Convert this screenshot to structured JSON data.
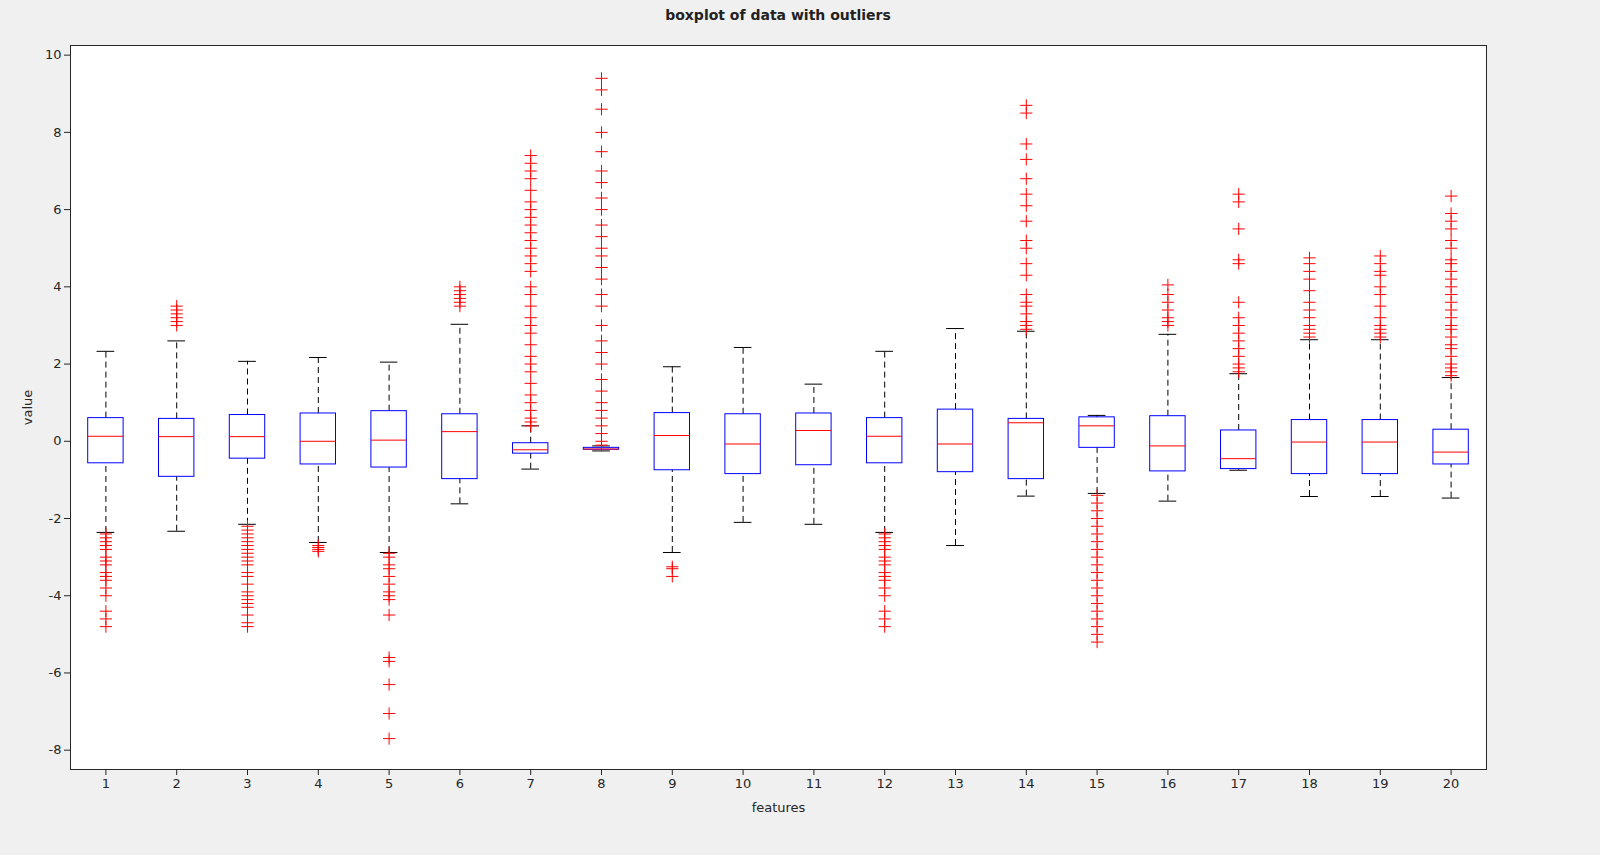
{
  "chart_data": {
    "type": "box",
    "title": "boxplot of data with outliers",
    "x_label": "features",
    "y_label": "value",
    "x": [
      1,
      2,
      3,
      4,
      5,
      6,
      7,
      8,
      9,
      10,
      11,
      12,
      13,
      14,
      15,
      16,
      17,
      18,
      19,
      20
    ],
    "xlim": [
      0.5,
      20.5
    ],
    "xticks": [
      1,
      2,
      3,
      4,
      5,
      6,
      7,
      8,
      9,
      10,
      11,
      12,
      13,
      14,
      15,
      16,
      17,
      18,
      19,
      20
    ],
    "ylim": [
      -8.5,
      10.25
    ],
    "yticks": [
      -8,
      -6,
      -4,
      -2,
      0,
      2,
      4,
      6,
      8,
      10
    ],
    "color": "#0000ff",
    "whisker_low": [
      -2.36,
      -2.33,
      -2.15,
      -2.62,
      -2.88,
      -1.62,
      -0.72,
      -0.25,
      -2.88,
      -2.1,
      -2.15,
      -2.36,
      -2.7,
      -1.42,
      -1.35,
      -1.55,
      -0.75,
      -1.43,
      -1.43,
      -1.47
    ],
    "q1": [
      -0.57,
      -0.92,
      -0.45,
      -0.6,
      -0.68,
      -0.98,
      -0.32,
      -0.22,
      -0.75,
      -0.85,
      -0.62,
      -0.57,
      -0.8,
      -0.98,
      -0.17,
      -0.78,
      -0.72,
      -0.85,
      -0.85,
      -0.6
    ],
    "median": [
      0.13,
      0.12,
      0.12,
      0.0,
      0.03,
      0.25,
      -0.22,
      -0.2,
      0.15,
      -0.07,
      0.28,
      0.13,
      -0.07,
      0.48,
      0.4,
      -0.12,
      -0.45,
      -0.02,
      -0.02,
      -0.28
    ],
    "q3": [
      0.6,
      0.58,
      0.68,
      0.72,
      0.78,
      0.7,
      -0.05,
      -0.17,
      0.73,
      0.7,
      0.72,
      0.6,
      0.82,
      0.58,
      0.62,
      0.65,
      0.28,
      0.55,
      0.55,
      0.3
    ],
    "whisker_high": [
      2.33,
      2.6,
      2.07,
      2.17,
      2.05,
      3.03,
      0.4,
      -0.12,
      1.93,
      2.43,
      1.48,
      2.33,
      2.92,
      2.85,
      0.67,
      2.77,
      1.75,
      2.63,
      2.63,
      1.65
    ],
    "outliers": [
      [
        -2.4,
        -2.5,
        -2.6,
        -2.7,
        -2.8,
        -3.0,
        -3.1,
        -3.2,
        -3.4,
        -3.5,
        -3.6,
        -3.8,
        -4.0,
        -4.4,
        -4.6,
        -4.8
      ],
      [
        3.0,
        3.1,
        3.2,
        3.3,
        3.4,
        3.5
      ],
      [
        -2.2,
        -2.3,
        -2.4,
        -2.5,
        -2.6,
        -2.7,
        -2.8,
        -2.9,
        -3.0,
        -3.1,
        -3.2,
        -3.4,
        -3.5,
        -3.7,
        -3.9,
        -4.0,
        -4.1,
        -4.2,
        -4.3,
        -4.5,
        -4.7,
        -4.8
      ],
      [
        -2.7,
        -2.75,
        -2.8,
        -2.85
      ],
      [
        -2.9,
        -3.0,
        -3.2,
        -3.3,
        -3.5,
        -3.7,
        -3.9,
        -4.0,
        -4.1,
        -4.5,
        -5.6,
        -5.7,
        -6.3,
        -7.05,
        -7.7
      ],
      [
        3.5,
        3.6,
        3.7,
        3.8,
        3.9,
        4.0
      ],
      [
        0.4,
        0.5,
        0.6,
        0.8,
        1.0,
        1.2,
        1.5,
        1.8,
        2.0,
        2.2,
        2.5,
        2.8,
        3.0,
        3.2,
        3.5,
        3.8,
        4.0,
        4.4,
        4.6,
        4.8,
        5.0,
        5.2,
        5.4,
        5.6,
        5.8,
        6.0,
        6.2,
        6.5,
        6.8,
        7.0,
        7.2,
        7.4
      ],
      [
        -0.1,
        0.0,
        0.2,
        0.4,
        0.6,
        0.8,
        1.0,
        1.3,
        1.6,
        2.0,
        2.3,
        2.6,
        3.0,
        3.5,
        3.8,
        4.2,
        4.5,
        4.8,
        5.0,
        5.3,
        5.6,
        6.0,
        6.3,
        6.7,
        7.0,
        7.5,
        8.0,
        8.6,
        9.1,
        9.4
      ],
      [
        -3.25,
        -3.3,
        -3.5
      ],
      [],
      [],
      [
        -2.4,
        -2.5,
        -2.6,
        -2.7,
        -2.8,
        -3.0,
        -3.1,
        -3.2,
        -3.4,
        -3.5,
        -3.6,
        -3.8,
        -4.0,
        -4.4,
        -4.6,
        -4.8
      ],
      [],
      [
        2.9,
        3.0,
        3.1,
        3.3,
        3.5,
        3.6,
        3.8,
        4.3,
        4.6,
        5.0,
        5.2,
        5.7,
        6.1,
        6.4,
        6.8,
        7.3,
        7.7,
        8.5,
        8.7
      ],
      [
        -1.4,
        -1.6,
        -1.8,
        -2.0,
        -2.2,
        -2.4,
        -2.6,
        -2.8,
        -3.0,
        -3.2,
        -3.4,
        -3.6,
        -3.8,
        -4.0,
        -4.2,
        -4.4,
        -4.6,
        -4.8,
        -5.0,
        -5.2
      ],
      [
        3.0,
        3.1,
        3.2,
        3.4,
        3.6,
        3.8,
        4.05
      ],
      [
        1.8,
        1.9,
        2.0,
        2.2,
        2.4,
        2.6,
        2.8,
        3.0,
        3.2,
        3.6,
        4.6,
        4.7,
        5.5,
        6.2,
        6.4
      ],
      [
        2.7,
        2.8,
        2.9,
        3.0,
        3.2,
        3.4,
        3.6,
        3.9,
        4.2,
        4.4,
        4.6,
        4.75
      ],
      [
        2.7,
        2.8,
        2.9,
        3.0,
        3.2,
        3.5,
        3.8,
        4.0,
        4.3,
        4.4,
        4.6,
        4.8
      ],
      [
        1.7,
        1.8,
        1.9,
        2.0,
        2.2,
        2.4,
        2.5,
        2.7,
        2.9,
        3.0,
        3.2,
        3.4,
        3.6,
        3.8,
        4.0,
        4.2,
        4.4,
        4.6,
        4.7,
        5.0,
        5.2,
        5.5,
        5.7,
        5.9,
        6.35
      ]
    ]
  }
}
